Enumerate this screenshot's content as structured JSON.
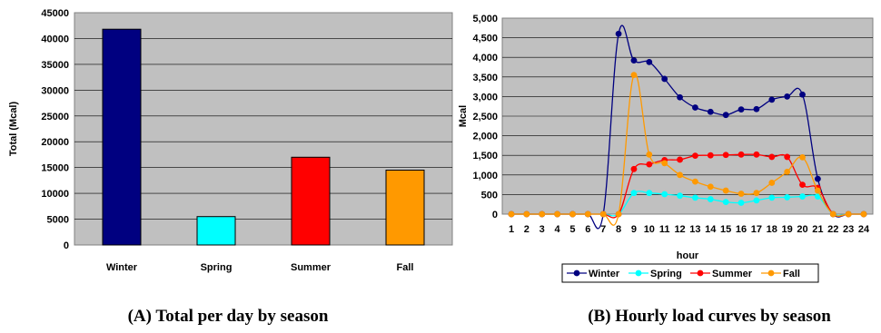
{
  "chart_data": [
    {
      "type": "bar",
      "caption": "(A) Total per day by season",
      "ylabel": "Total (Mcal)",
      "categories": [
        "Winter",
        "Spring",
        "Summer",
        "Fall"
      ],
      "values": [
        41800,
        5500,
        17000,
        14500
      ],
      "colors": [
        "#000080",
        "#00FFFF",
        "#FF0000",
        "#FF9900"
      ],
      "ylim": [
        0,
        45000
      ],
      "yticks": [
        "0",
        "5000",
        "10000",
        "15000",
        "20000",
        "25000",
        "30000",
        "35000",
        "40000",
        "45000"
      ],
      "grid": true,
      "plot_background": "#C0C0C0"
    },
    {
      "type": "line",
      "caption": "(B) Hourly load curves by season",
      "xlabel": "hour",
      "ylabel": "Mcal",
      "x": [
        "1",
        "2",
        "3",
        "4",
        "5",
        "6",
        "7",
        "8",
        "9",
        "10",
        "11",
        "12",
        "13",
        "14",
        "15",
        "16",
        "17",
        "18",
        "19",
        "20",
        "21",
        "22",
        "23",
        "24"
      ],
      "ylim": [
        0,
        5000
      ],
      "yticks": [
        "0",
        "500",
        "1,000",
        "1,500",
        "2,000",
        "2,500",
        "3,000",
        "3,500",
        "4,000",
        "4,500",
        "5,000"
      ],
      "grid": true,
      "legend_position": "bottom",
      "plot_background": "#C0C0C0",
      "series": [
        {
          "name": "Winter",
          "color": "#000080",
          "values": [
            0,
            0,
            0,
            0,
            0,
            0,
            0,
            4600,
            3920,
            3880,
            3450,
            2980,
            2720,
            2610,
            2530,
            2670,
            2680,
            2920,
            3000,
            3050,
            900,
            0,
            0,
            0
          ]
        },
        {
          "name": "Spring",
          "color": "#00FFFF",
          "values": [
            0,
            0,
            0,
            0,
            0,
            0,
            0,
            0,
            540,
            540,
            510,
            470,
            420,
            380,
            310,
            290,
            350,
            420,
            430,
            450,
            450,
            0,
            0,
            0
          ]
        },
        {
          "name": "Summer",
          "color": "#FF0000",
          "values": [
            0,
            0,
            0,
            0,
            0,
            0,
            0,
            0,
            1150,
            1270,
            1380,
            1390,
            1490,
            1500,
            1510,
            1520,
            1520,
            1460,
            1460,
            750,
            670,
            0,
            0,
            0
          ]
        },
        {
          "name": "Fall",
          "color": "#FF9900",
          "values": [
            0,
            0,
            0,
            0,
            0,
            0,
            0,
            0,
            3550,
            1520,
            1300,
            1000,
            830,
            700,
            600,
            520,
            540,
            800,
            1080,
            1450,
            600,
            0,
            0,
            0
          ]
        }
      ]
    }
  ]
}
